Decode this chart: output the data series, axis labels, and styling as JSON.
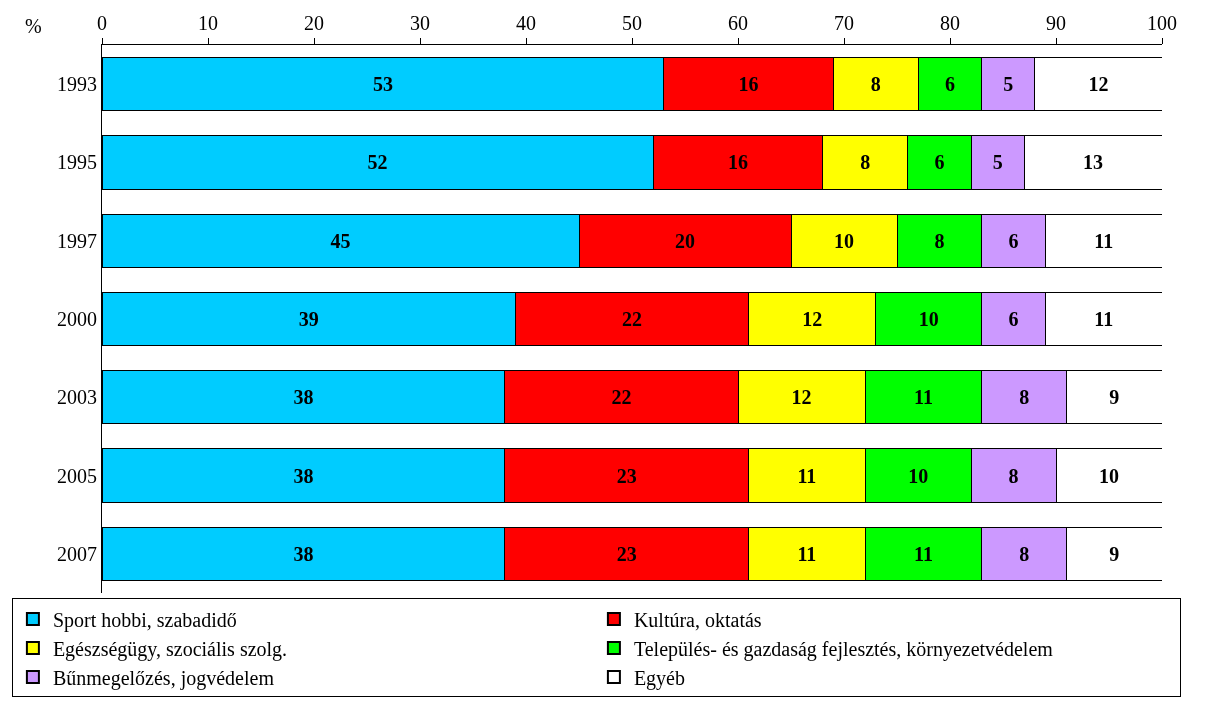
{
  "chart_data": {
    "type": "bar",
    "orientation": "horizontal",
    "stacked": true,
    "xlabel": "%",
    "categories": [
      "1993",
      "1995",
      "1997",
      "2000",
      "2003",
      "2005",
      "2007"
    ],
    "xlim": [
      0,
      100
    ],
    "xticks": [
      0,
      10,
      20,
      30,
      40,
      50,
      60,
      70,
      80,
      90,
      100
    ],
    "series": [
      {
        "name": "Sport hobbi, szabadidő",
        "color": "#00ccff",
        "values": [
          53,
          52,
          45,
          39,
          38,
          38,
          38
        ]
      },
      {
        "name": "Kultúra, oktatás",
        "color": "#ff0000",
        "values": [
          16,
          16,
          20,
          22,
          22,
          23,
          23
        ]
      },
      {
        "name": "Egészségügy, szociális szolg.",
        "color": "#ffff00",
        "values": [
          8,
          8,
          10,
          12,
          12,
          11,
          11
        ]
      },
      {
        "name": "Település- és gazdaság fejlesztés, környezetvédelem",
        "color": "#00ff00",
        "values": [
          6,
          6,
          8,
          10,
          11,
          10,
          11
        ]
      },
      {
        "name": "Bűnmegelőzés, jogvédelem",
        "color": "#cc99ff",
        "values": [
          5,
          5,
          6,
          6,
          8,
          8,
          8
        ]
      },
      {
        "name": "Egyéb",
        "color": "#ffffff",
        "values": [
          12,
          13,
          11,
          11,
          9,
          10,
          9
        ]
      }
    ],
    "data_labels": true,
    "grid": false,
    "legend": "bottom"
  }
}
